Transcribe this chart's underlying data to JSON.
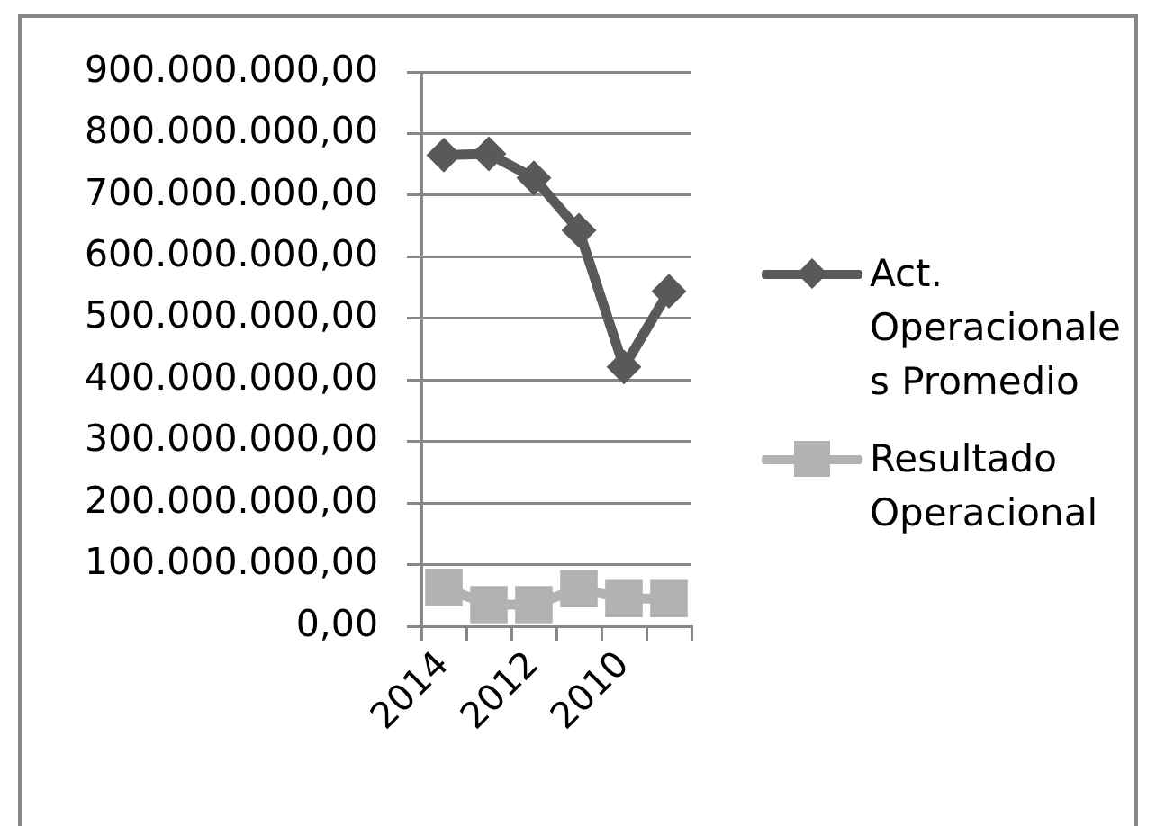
{
  "chart_data": {
    "type": "line",
    "categories": [
      "2014",
      null,
      "2012",
      null,
      "2010",
      null
    ],
    "series": [
      {
        "name": "Act. Operacionales Promedio",
        "color": "#595959",
        "marker": "diamond",
        "values": [
          765000000,
          767000000,
          728000000,
          643000000,
          421000000,
          544000000
        ]
      },
      {
        "name": "Resultado Operacional",
        "color": "#b2b2b2",
        "marker": "square",
        "values": [
          63000000,
          35000000,
          35000000,
          61000000,
          45000000,
          45000000
        ]
      }
    ],
    "ylim": [
      0,
      900000000
    ],
    "yticks": [
      {
        "value": 0,
        "label": "0,00"
      },
      {
        "value": 100000000,
        "label": "100.000.000,00"
      },
      {
        "value": 200000000,
        "label": "200.000.000,00"
      },
      {
        "value": 300000000,
        "label": "300.000.000,00"
      },
      {
        "value": 400000000,
        "label": "400.000.000,00"
      },
      {
        "value": 500000000,
        "label": "500.000.000,00"
      },
      {
        "value": 600000000,
        "label": "600.000.000,00"
      },
      {
        "value": 700000000,
        "label": "700.000.000,00"
      },
      {
        "value": 800000000,
        "label": "800.000.000,00"
      },
      {
        "value": 900000000,
        "label": "900.000.000,00"
      }
    ],
    "grid": "y",
    "legend": "right"
  }
}
